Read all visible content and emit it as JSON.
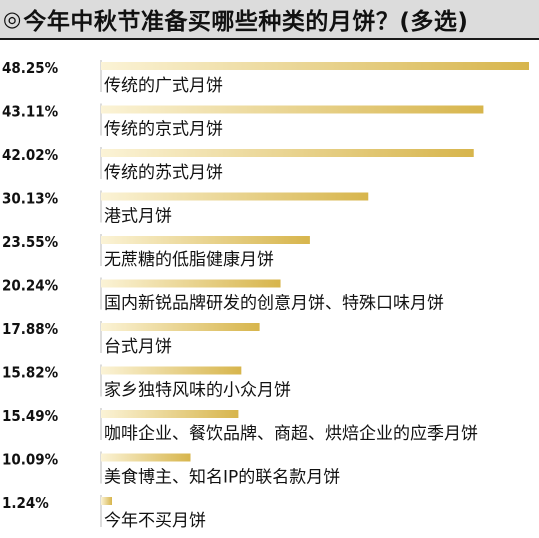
{
  "header": {
    "mark": "◎",
    "title": "今年中秋节准备买哪些种类的月饼？(多选)"
  },
  "colors": {
    "bar_start": "#fbf3d6",
    "bar_end": "#d7b54c",
    "header_bg": "#dcdcdc"
  },
  "chart_data": {
    "type": "bar",
    "orientation": "horizontal",
    "title": "今年中秋节准备买哪些种类的月饼？(多选)",
    "unit": "%",
    "xlim": [
      0,
      48.25
    ],
    "categories": [
      "传统的广式月饼",
      "传统的京式月饼",
      "传统的苏式月饼",
      "港式月饼",
      "无蔗糖的低脂健康月饼",
      "国内新锐品牌研发的创意月饼、特殊口味月饼",
      "台式月饼",
      "家乡独特风味的小众月饼",
      "咖啡企业、餐饮品牌、商超、烘焙企业的应季月饼",
      "美食博主、知名IP的联名款月饼",
      "今年不买月饼"
    ],
    "values": [
      48.25,
      43.11,
      42.02,
      30.13,
      23.55,
      20.24,
      17.88,
      15.82,
      15.49,
      10.09,
      1.24
    ],
    "value_labels": [
      "48.25%",
      "43.11%",
      "42.02%",
      "30.13%",
      "23.55%",
      "20.24%",
      "17.88%",
      "15.82%",
      "15.49%",
      "10.09%",
      "1.24%"
    ]
  }
}
